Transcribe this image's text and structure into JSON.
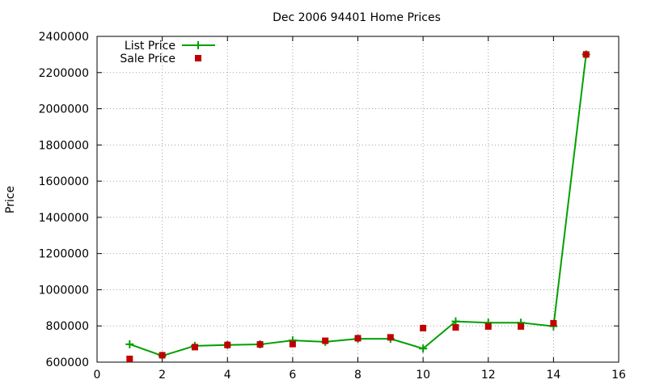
{
  "chart_data": {
    "type": "line",
    "title": "Dec 2006 94401 Home Prices",
    "xlabel": "",
    "ylabel": "Price",
    "xlim": [
      0,
      16
    ],
    "ylim": [
      600000,
      2400000
    ],
    "xticks": [
      0,
      2,
      4,
      6,
      8,
      10,
      12,
      14,
      16
    ],
    "yticks": [
      600000,
      800000,
      1000000,
      1200000,
      1400000,
      1600000,
      1800000,
      2000000,
      2200000,
      2400000
    ],
    "grid": true,
    "legend_position": "top-left",
    "series": [
      {
        "name": "List Price",
        "style": "line-with-plus-markers",
        "color": "#00a000",
        "x": [
          1,
          2,
          3,
          4,
          5,
          6,
          7,
          8,
          9,
          10,
          11,
          12,
          13,
          14,
          15
        ],
        "y": [
          699000,
          635000,
          690000,
          695000,
          698000,
          720000,
          712000,
          729000,
          729000,
          675000,
          825000,
          818000,
          818000,
          798000,
          2300000
        ]
      },
      {
        "name": "Sale Price",
        "style": "square-markers",
        "color": "#c00000",
        "x": [
          1,
          2,
          3,
          4,
          5,
          6,
          7,
          8,
          9,
          10,
          11,
          12,
          13,
          14,
          15
        ],
        "y": [
          618000,
          638000,
          683000,
          695000,
          698000,
          700000,
          718000,
          732000,
          737000,
          788000,
          792000,
          797000,
          797000,
          815000,
          2300000
        ]
      }
    ]
  }
}
